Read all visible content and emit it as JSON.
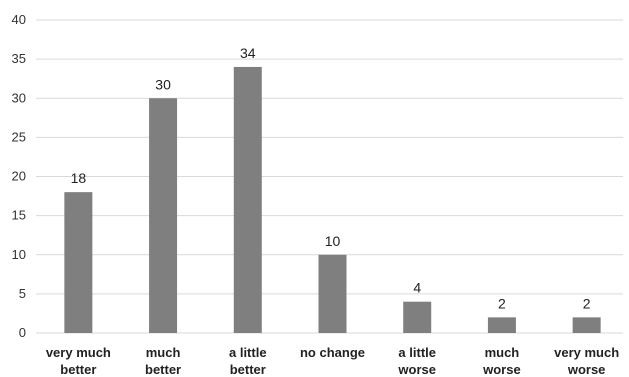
{
  "chart_data": {
    "type": "bar",
    "categories": [
      [
        "very much",
        "better"
      ],
      [
        "much",
        "better"
      ],
      [
        "a little",
        "better"
      ],
      [
        "no change"
      ],
      [
        "a little",
        "worse"
      ],
      [
        "much",
        "worse"
      ],
      [
        "very much",
        "worse"
      ]
    ],
    "values": [
      18,
      30,
      34,
      10,
      4,
      2,
      2
    ],
    "ylim": [
      0,
      40
    ],
    "yticks": [
      0,
      5,
      10,
      15,
      20,
      25,
      30,
      35,
      40
    ],
    "grid": true,
    "bar_color": "#7f7f7f",
    "title": "",
    "xlabel": "",
    "ylabel": ""
  }
}
